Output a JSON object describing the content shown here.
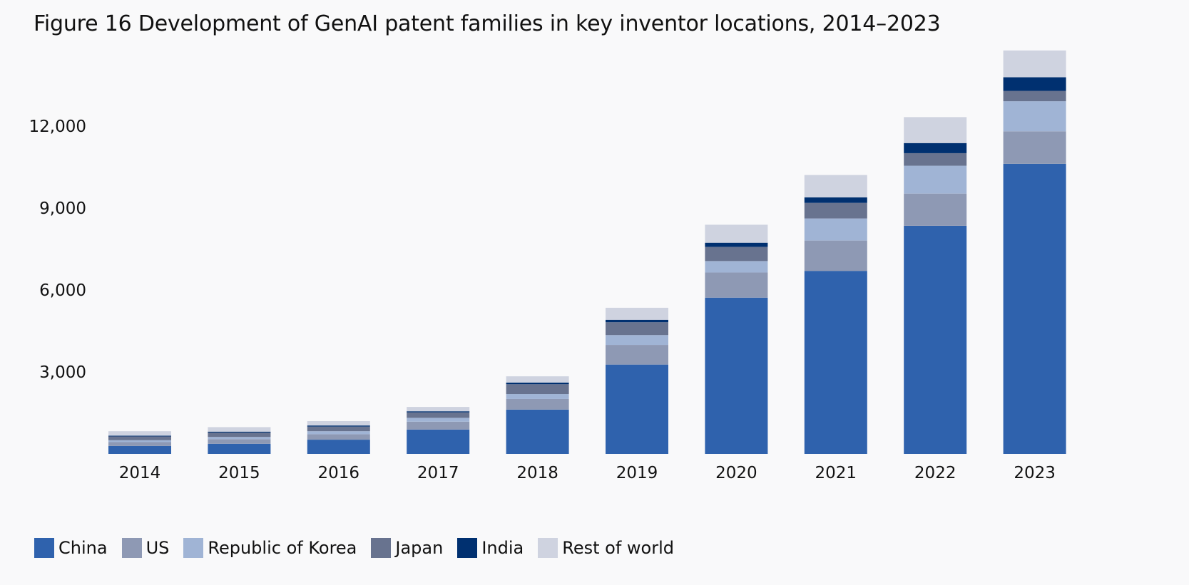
{
  "chart_data": {
    "type": "bar",
    "stacked": true,
    "title": "Figure 16 Development of GenAI patent families in key inventor locations, 2014–2023",
    "xlabel": "",
    "ylabel": "",
    "ylim": [
      0,
      15000
    ],
    "yticks": [
      3000,
      6000,
      9000,
      12000
    ],
    "ytick_labels": [
      "3,000",
      "6,000",
      "9,000",
      "12,000"
    ],
    "grid": false,
    "legend_position": "bottom-left",
    "categories": [
      "2014",
      "2015",
      "2016",
      "2017",
      "2018",
      "2019",
      "2020",
      "2021",
      "2022",
      "2023"
    ],
    "series": [
      {
        "name": "China",
        "color": "#2f62ad",
        "values": [
          290,
          370,
          520,
          890,
          1620,
          3270,
          5720,
          6700,
          8350,
          10620
        ]
      },
      {
        "name": "US",
        "color": "#8e99b4",
        "values": [
          140,
          170,
          200,
          290,
          390,
          720,
          920,
          1110,
          1180,
          1190
        ]
      },
      {
        "name": "Republic of Korea",
        "color": "#a0b4d5",
        "values": [
          70,
          80,
          110,
          140,
          180,
          360,
          420,
          810,
          1020,
          1100
        ]
      },
      {
        "name": "Japan",
        "color": "#68738f",
        "values": [
          140,
          160,
          170,
          200,
          360,
          470,
          520,
          570,
          460,
          380
        ]
      },
      {
        "name": "India",
        "color": "#003070",
        "values": [
          25,
          35,
          40,
          40,
          60,
          90,
          150,
          200,
          370,
          500
        ]
      },
      {
        "name": "Rest of world",
        "color": "#cfd3e0",
        "values": [
          165,
          165,
          160,
          160,
          230,
          440,
          660,
          820,
          950,
          980
        ]
      }
    ]
  }
}
